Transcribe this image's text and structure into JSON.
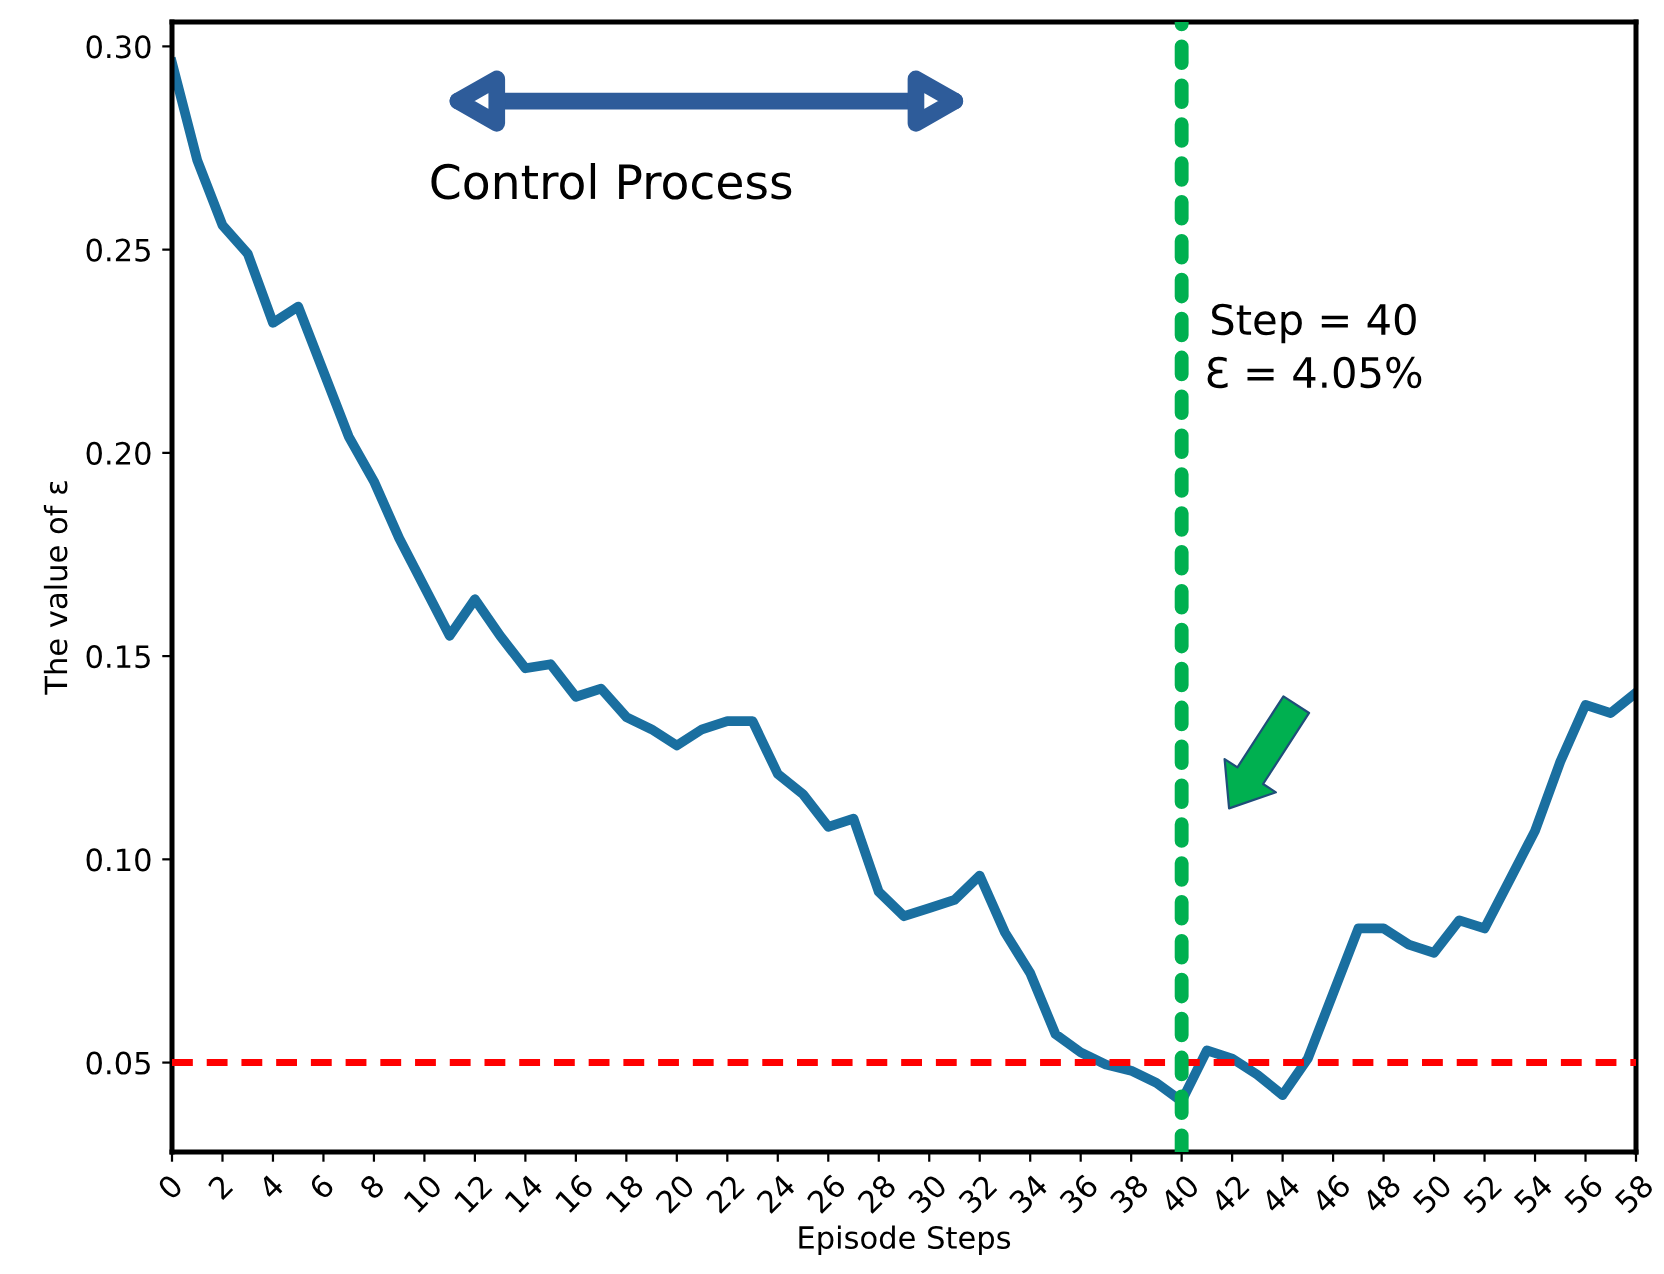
{
  "chart_data": {
    "type": "line",
    "xlabel": "Episode Steps",
    "ylabel": "The value of ε",
    "x": [
      0,
      1,
      2,
      3,
      4,
      5,
      6,
      7,
      8,
      9,
      10,
      11,
      12,
      13,
      14,
      15,
      16,
      17,
      18,
      19,
      20,
      21,
      22,
      23,
      24,
      25,
      26,
      27,
      28,
      29,
      30,
      31,
      32,
      33,
      34,
      35,
      36,
      37,
      38,
      39,
      40,
      41,
      42,
      43,
      44,
      45,
      46,
      47,
      48,
      49,
      50,
      51,
      52,
      53,
      54,
      55,
      56,
      57,
      58
    ],
    "series": [
      {
        "color": "#1a6fa0",
        "values": [
          0.296,
          0.272,
          0.256,
          0.249,
          0.232,
          0.236,
          0.22,
          0.204,
          0.193,
          0.179,
          0.167,
          0.155,
          0.164,
          0.155,
          0.147,
          0.148,
          0.14,
          0.142,
          0.135,
          0.132,
          0.128,
          0.132,
          0.134,
          0.134,
          0.121,
          0.116,
          0.108,
          0.11,
          0.092,
          0.086,
          0.088,
          0.09,
          0.096,
          0.082,
          0.072,
          0.057,
          0.0525,
          0.0495,
          0.048,
          0.045,
          0.0405,
          0.053,
          0.051,
          0.047,
          0.042,
          0.051,
          0.067,
          0.083,
          0.083,
          0.079,
          0.077,
          0.085,
          0.083,
          0.095,
          0.107,
          0.124,
          0.138,
          0.136,
          0.141
        ]
      }
    ],
    "xlim": [
      0,
      58
    ],
    "xticks": [
      0,
      2,
      4,
      6,
      8,
      10,
      12,
      14,
      16,
      18,
      20,
      22,
      24,
      26,
      28,
      30,
      32,
      34,
      36,
      38,
      40,
      42,
      44,
      46,
      48,
      50,
      52,
      54,
      56,
      58
    ],
    "ylim": [
      0.028,
      0.306
    ],
    "yticks": [
      {
        "value": 0.05,
        "label": "0.05"
      },
      {
        "value": 0.1,
        "label": "0.10"
      },
      {
        "value": 0.15,
        "label": "0.15"
      },
      {
        "value": 0.2,
        "label": "0.20"
      },
      {
        "value": 0.25,
        "label": "0.25"
      },
      {
        "value": 0.3,
        "label": "0.30"
      }
    ],
    "ref_lines": [
      {
        "axis": "y",
        "value": 0.05,
        "color": "#ff0000",
        "line_style": "dashed"
      },
      {
        "axis": "x",
        "value": 40,
        "color": "#00b050",
        "line_style": "dotted"
      }
    ],
    "annotations": [
      "Control Process",
      "Step = 40\nƐ = 4.05%"
    ],
    "grid": false,
    "marker": "none",
    "line_style": "solid"
  }
}
